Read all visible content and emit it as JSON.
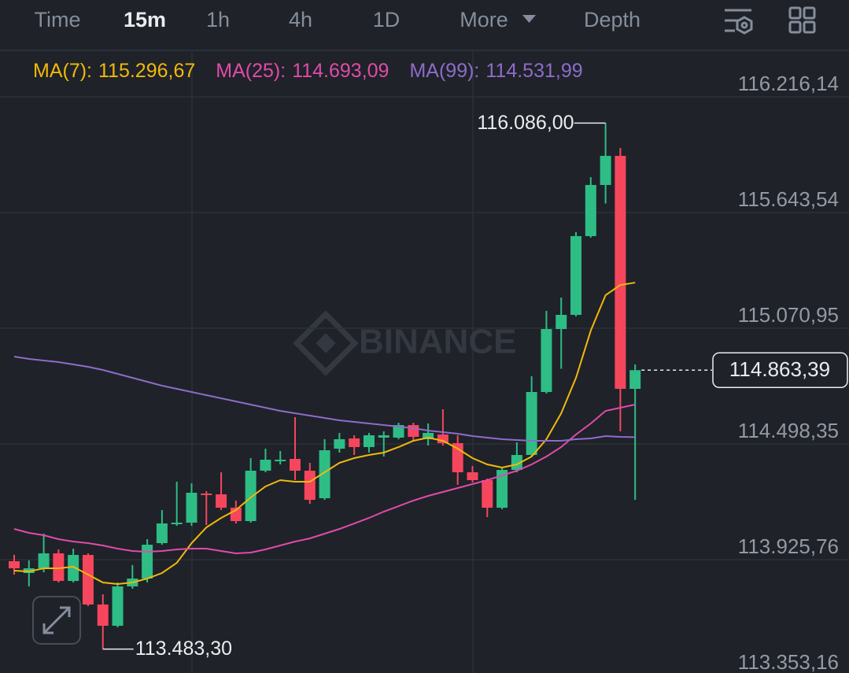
{
  "toolbar": {
    "tabs": [
      "Time",
      "15m",
      "1h",
      "4h",
      "1D",
      "More",
      "Depth"
    ],
    "active": "15m"
  },
  "chart_data": {
    "type": "candlestick",
    "watermark": "BINANCE",
    "up_color": "#2ebd85",
    "down_color": "#f6465d",
    "open": [
      113918.0,
      113859.5,
      113882.9,
      113956.9,
      113820.5,
      113949.1,
      113703.7,
      113598.5,
      113793.3,
      113832.2,
      114007.5,
      114104.9,
      114108.8,
      114252.9,
      114249.0,
      114182.8,
      114116.6,
      114365.9,
      114416.5,
      114424.3,
      114365.9,
      114229.6,
      114475.0,
      114525.6,
      114482.8,
      114529.5,
      114529.5,
      114591.8,
      114521.7,
      114545.1,
      114502.3,
      114358.1,
      114319.2,
      114182.8,
      114369.8,
      114443.8,
      114755.4,
      115067.0,
      115137.1,
      115526.7,
      115779.9,
      115924.0,
      114771.0
    ],
    "high": [
      113949.1,
      113921.8,
      114054.3,
      113976.4,
      113980.3,
      113956.9,
      113754.4,
      113812.7,
      113898.7,
      114026.9,
      114171.1,
      114311.3,
      114303.6,
      114264.6,
      114358.1,
      114217.9,
      114428.2,
      114475.0,
      114463.3,
      114630.8,
      114404.8,
      114521.7,
      114552.9,
      114541.2,
      114552.9,
      114560.7,
      114603.5,
      114603.5,
      114599.6,
      114669.7,
      114541.2,
      114389.3,
      114327.0,
      114381.5,
      114506.1,
      114833.3,
      115156.6,
      115222.8,
      115546.1,
      115818.8,
      116086.0,
      115962.9,
      114891.8
    ],
    "low": [
      113851.7,
      113793.3,
      113863.4,
      113812.7,
      113812.7,
      113695.9,
      113483.3,
      113590.8,
      113781.6,
      113812.7,
      113999.7,
      114093.2,
      114093.2,
      114097.1,
      114171.1,
      114104.9,
      114108.8,
      114358.1,
      114397.0,
      114319.2,
      114202.3,
      114221.8,
      114455.5,
      114443.8,
      114455.5,
      114436.0,
      114521.7,
      114513.9,
      114490.6,
      114490.6,
      114295.9,
      114307.5,
      114136.1,
      114175.0,
      114358.1,
      114436.0,
      114747.6,
      114870.3,
      115129.3,
      115518.9,
      115688.4,
      114560.7,
      114221.8
    ],
    "close": [
      113882.9,
      113882.9,
      113956.9,
      113820.5,
      113949.1,
      113703.7,
      113598.5,
      113793.3,
      113832.2,
      113999.7,
      114104.9,
      114108.8,
      114256.8,
      114249.0,
      114182.8,
      114116.6,
      114365.9,
      114420.4,
      114420.4,
      114365.9,
      114221.8,
      114467.2,
      114521.7,
      114482.8,
      114541.2,
      114541.2,
      114591.8,
      114533.4,
      114552.9,
      114502.3,
      114358.1,
      114319.2,
      114182.8,
      114369.8,
      114443.8,
      114755.4,
      115067.0,
      115137.1,
      115526.7,
      115779.9,
      115924.0,
      114771.0,
      114863.39
    ],
    "series": [
      {
        "name": "MA(7):",
        "color": "#f0b90b",
        "last_label": "115.296,67",
        "values": [
          113871.0,
          113867.1,
          113882.9,
          113882.9,
          113890.7,
          113851.7,
          113812.7,
          113804.9,
          113812.7,
          113832.2,
          113859.5,
          113910.1,
          114007.5,
          114085.4,
          114132.2,
          114171.1,
          114233.5,
          114288.0,
          114319.2,
          114311.4,
          114311.4,
          114358.1,
          114404.8,
          114428.2,
          114443.8,
          114455.5,
          114482.8,
          114513.9,
          114529.5,
          114513.9,
          114475.0,
          114428.2,
          114397.0,
          114381.5,
          114397.0,
          114436.0,
          114521.7,
          114650.2,
          114825.5,
          115059.2,
          115234.5,
          115285.1,
          115296.67
        ]
      },
      {
        "name": "MA(25):",
        "color": "#e04ba8",
        "last_label": "114.693,09",
        "values": [
          114077.6,
          114058.1,
          114046.4,
          114026.9,
          114015.3,
          114007.5,
          113995.8,
          113980.3,
          113968.6,
          113964.7,
          113968.6,
          113976.4,
          113980.3,
          113980.3,
          113968.6,
          113956.9,
          113960.8,
          113976.4,
          113995.8,
          114015.3,
          114030.9,
          114054.3,
          114077.6,
          114104.9,
          114132.2,
          114163.3,
          114190.6,
          114217.9,
          114241.2,
          114260.7,
          114280.2,
          114299.6,
          114319.2,
          114342.5,
          114365.9,
          114397.0,
          114436.0,
          114482.8,
          114545.1,
          114599.6,
          114661.9,
          114677.5,
          114693.09
        ]
      },
      {
        "name": "MA(99):",
        "color": "#8e6cc9",
        "last_label": "114.531,99",
        "values": [
          114930.7,
          114919.0,
          114911.2,
          114903.4,
          114891.8,
          114880.1,
          114864.5,
          114845.0,
          114825.5,
          114806.1,
          114786.6,
          114771.0,
          114755.4,
          114739.8,
          114724.3,
          114708.7,
          114693.1,
          114677.5,
          114661.9,
          114650.2,
          114638.5,
          114626.8,
          114615.1,
          114607.4,
          114599.6,
          114591.8,
          114584.0,
          114576.2,
          114564.5,
          114556.7,
          114549.0,
          114537.3,
          114529.5,
          114521.7,
          114517.8,
          114513.9,
          114513.9,
          114513.9,
          114521.7,
          114525.6,
          114537.3,
          114533.4,
          114531.99
        ]
      }
    ],
    "ylim": [
      113364.8,
      116442.1
    ],
    "yticks": [
      {
        "value": 116216.14,
        "label": "116.216,14"
      },
      {
        "value": 115643.54,
        "label": "115.643,54"
      },
      {
        "value": 115070.95,
        "label": "115.070,95"
      },
      {
        "value": 114498.35,
        "label": "114.498,35"
      },
      {
        "value": 113925.76,
        "label": "113.925,76"
      },
      {
        "value": 113353.16,
        "label": "113.353,16"
      }
    ],
    "grid": true,
    "annotations": [
      {
        "value": 116086.0,
        "label": "116.086,00"
      },
      {
        "value": 113483.3,
        "label": "113.483,30"
      }
    ],
    "last_price": {
      "value": 114863.39,
      "label": "114.863,39"
    }
  }
}
